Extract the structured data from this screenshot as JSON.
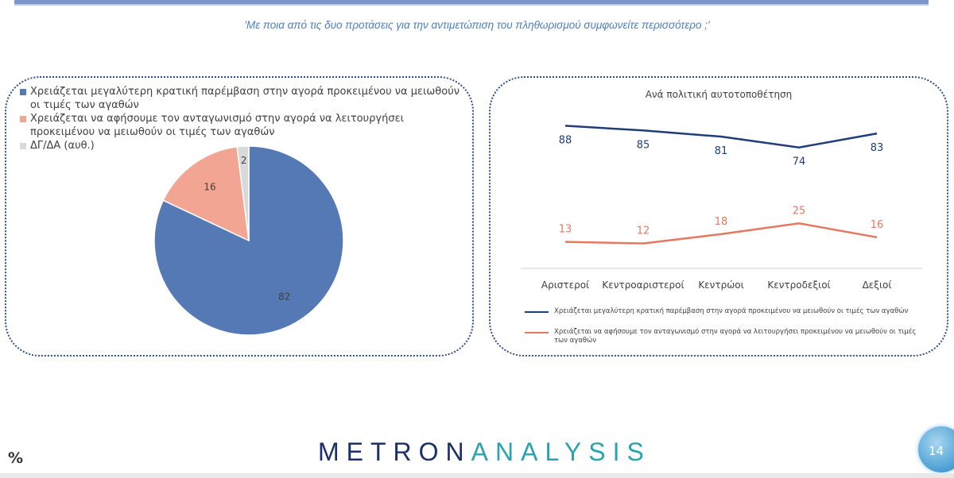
{
  "question": "'Με ποια από τις δυο προτάσεις για την αντιμετώπιση του πληθωρισμού συμφωνείτε περισσότερο ;'",
  "colors": {
    "series_a": "#1f3d7a",
    "series_b": "#e57860",
    "pie_a": "#5479b5",
    "pie_b": "#f1a592",
    "pie_c": "#d9d9d9"
  },
  "chart_data": [
    {
      "type": "pie",
      "slices": [
        {
          "label": "Χρειάζεται μεγαλύτερη κρατική παρέμβαση στην αγορά προκειμένου να μειωθούν οι τιμές των αγαθών",
          "value": 82
        },
        {
          "label": "Χρειάζεται να αφήσουμε τον ανταγωνισμό στην αγορά να λειτουργήσει προκειμένου να μειωθούν οι τιμές των αγαθών",
          "value": 16
        },
        {
          "label": "ΔΓ/ΔΑ (αυθ.)",
          "value": 2
        }
      ],
      "legend": "top"
    },
    {
      "type": "line",
      "title": "Ανά πολιτική αυτοτοποθέτηση",
      "categories": [
        "Αριστεροί",
        "Κεντροαριστεροί",
        "Κεντρώοι",
        "Κεντροδεξιοί",
        "Δεξιοί"
      ],
      "series": [
        {
          "name": "Χρειάζεται μεγαλύτερη κρατική παρέμβαση στην αγορά προκειμένου να μειωθούν οι τιμές των αγαθών",
          "values": [
            88,
            85,
            81,
            74,
            83
          ]
        },
        {
          "name": "Χρειάζεται να αφήσουμε τον ανταγωνισμό στην αγορά να λειτουργήσει προκειμένου να μειωθούν οι τιμές των αγαθών",
          "values": [
            13,
            12,
            18,
            25,
            16
          ]
        }
      ],
      "legend": "bottom",
      "grid": false
    }
  ],
  "logo": {
    "part1": "METRON",
    "part2": "ANALYSIS"
  },
  "percent_sign": "%",
  "page_number": "14"
}
